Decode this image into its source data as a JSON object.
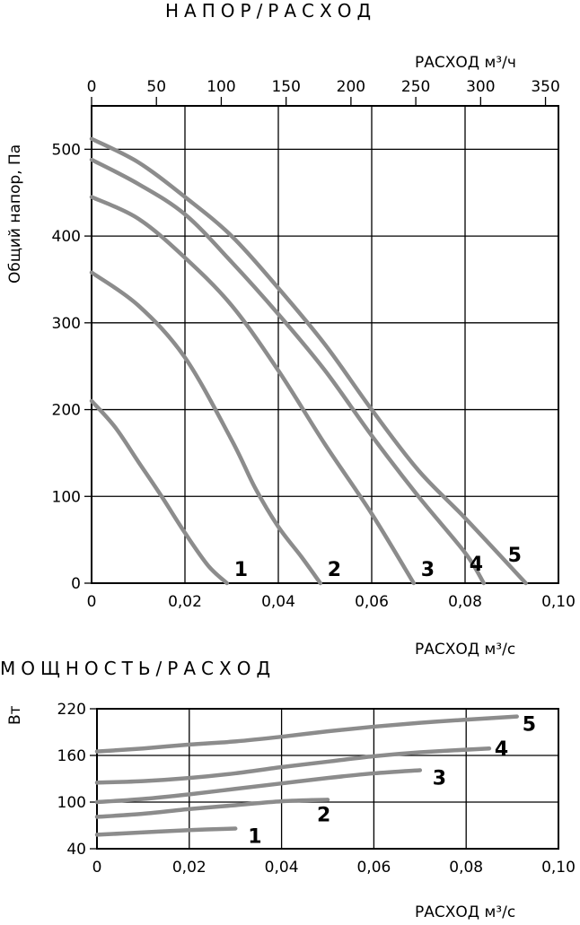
{
  "chart_data": [
    {
      "type": "line",
      "title": "НАПОР/РАСХОД",
      "x2label": "РАСХОД м³/ч",
      "xlabel": "",
      "ylabel": "Общий напор, Па",
      "xlim": [
        0,
        0.1
      ],
      "ylim": [
        0,
        550
      ],
      "x_ticks": [
        "0",
        "0,02",
        "0,04",
        "0,06",
        "0,08",
        "0,10"
      ],
      "x_tick_values": [
        0,
        0.02,
        0.04,
        0.06,
        0.08,
        0.1
      ],
      "x2_ticks": [
        "0",
        "50",
        "100",
        "150",
        "200",
        "250",
        "300",
        "350"
      ],
      "x2_tick_values": [
        0,
        50,
        100,
        150,
        200,
        250,
        300,
        350
      ],
      "x2_unit_per_x": 3600,
      "y_ticks": [
        "0",
        "100",
        "200",
        "300",
        "400",
        "500"
      ],
      "y_tick_values": [
        0,
        100,
        200,
        300,
        400,
        500
      ],
      "grid": true,
      "series": [
        {
          "name": "1",
          "x": [
            0,
            0.005,
            0.01,
            0.015,
            0.02,
            0.025,
            0.029
          ],
          "y": [
            210,
            180,
            140,
            100,
            58,
            20,
            0
          ]
        },
        {
          "name": "2",
          "x": [
            0,
            0.01,
            0.02,
            0.03,
            0.035,
            0.04,
            0.045,
            0.049
          ],
          "y": [
            358,
            320,
            260,
            165,
            110,
            65,
            30,
            0
          ]
        },
        {
          "name": "3",
          "x": [
            0,
            0.01,
            0.02,
            0.03,
            0.04,
            0.05,
            0.06,
            0.069
          ],
          "y": [
            445,
            420,
            375,
            320,
            245,
            160,
            80,
            0
          ]
        },
        {
          "name": "4",
          "x": [
            0,
            0.01,
            0.02,
            0.03,
            0.04,
            0.05,
            0.06,
            0.07,
            0.08,
            0.084
          ],
          "y": [
            488,
            460,
            425,
            370,
            310,
            245,
            170,
            100,
            35,
            0
          ]
        },
        {
          "name": "5",
          "x": [
            0,
            0.01,
            0.02,
            0.03,
            0.04,
            0.05,
            0.06,
            0.07,
            0.08,
            0.093
          ],
          "y": [
            512,
            485,
            445,
            400,
            340,
            275,
            200,
            130,
            75,
            0
          ]
        }
      ],
      "colors": {
        "curve": "#8c8c8c",
        "grid": "#000000"
      }
    },
    {
      "type": "line",
      "title": "МОЩНОСТЬ/РАСХОД",
      "xlabel": "РАСХОД м³/с",
      "ylabel": "Вт",
      "xlim": [
        0,
        0.1
      ],
      "ylim": [
        40,
        220
      ],
      "x_ticks": [
        "0",
        "0,02",
        "0,04",
        "0,06",
        "0,08",
        "0,10"
      ],
      "x_tick_values": [
        0,
        0.02,
        0.04,
        0.06,
        0.08,
        0.1
      ],
      "y_ticks": [
        "40",
        "100",
        "160",
        "220"
      ],
      "y_tick_values": [
        40,
        100,
        160,
        220
      ],
      "grid": true,
      "series": [
        {
          "name": "1",
          "x": [
            0,
            0.01,
            0.02,
            0.03
          ],
          "y": [
            58,
            61,
            64,
            66
          ]
        },
        {
          "name": "2",
          "x": [
            0,
            0.01,
            0.02,
            0.03,
            0.04,
            0.05
          ],
          "y": [
            81,
            85,
            91,
            96,
            101,
            103
          ]
        },
        {
          "name": "3",
          "x": [
            0,
            0.01,
            0.02,
            0.03,
            0.04,
            0.05,
            0.06,
            0.07
          ],
          "y": [
            100,
            104,
            110,
            117,
            124,
            131,
            137,
            141
          ]
        },
        {
          "name": "4",
          "x": [
            0,
            0.01,
            0.02,
            0.03,
            0.04,
            0.05,
            0.06,
            0.07,
            0.085
          ],
          "y": [
            125,
            127,
            131,
            137,
            145,
            152,
            159,
            164,
            169
          ]
        },
        {
          "name": "5",
          "x": [
            0,
            0.01,
            0.02,
            0.03,
            0.04,
            0.05,
            0.06,
            0.07,
            0.08,
            0.091
          ],
          "y": [
            165,
            169,
            174,
            178,
            184,
            191,
            197,
            202,
            206,
            210
          ]
        }
      ],
      "colors": {
        "curve": "#8c8c8c",
        "grid": "#000000"
      }
    }
  ]
}
